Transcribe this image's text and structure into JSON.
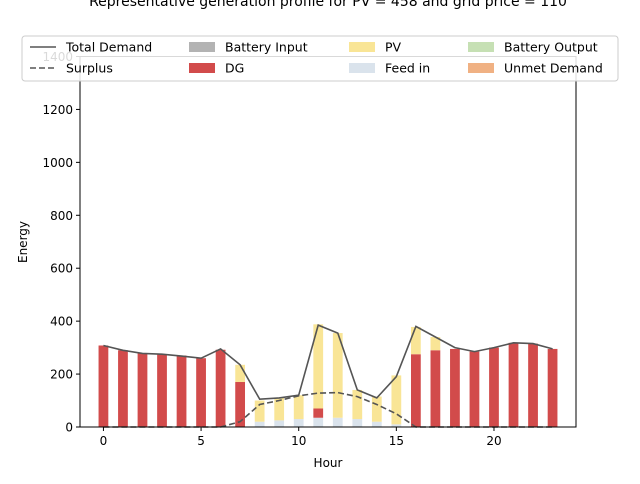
{
  "chart_data": {
    "type": "bar",
    "title": "Representative generation profile for PV = 458 and grid price = 110",
    "xlabel": "Hour",
    "ylabel": "Energy",
    "xlim": [
      -1.2,
      24.2
    ],
    "ylim": [
      0,
      1400
    ],
    "xticks": [
      0,
      5,
      10,
      15,
      20
    ],
    "yticks": [
      0,
      200,
      400,
      600,
      800,
      1000,
      1200,
      1400
    ],
    "grid": false,
    "legend_position": "top",
    "x": [
      0,
      1,
      2,
      3,
      4,
      5,
      6,
      7,
      8,
      9,
      10,
      11,
      12,
      13,
      14,
      15,
      16,
      17,
      18,
      19,
      20,
      21,
      22,
      23
    ],
    "stacked_bars": [
      {
        "name": "Battery Input",
        "color": "#b3b3b3",
        "values": [
          0,
          0,
          0,
          0,
          0,
          0,
          0,
          0,
          0,
          0,
          0,
          0,
          0,
          0,
          0,
          0,
          0,
          0,
          0,
          0,
          0,
          0,
          0,
          0
        ]
      },
      {
        "name": "Feed in",
        "color": "#dae3ec",
        "values": [
          0,
          0,
          0,
          0,
          0,
          0,
          0,
          0,
          20,
          25,
          30,
          35,
          35,
          30,
          20,
          10,
          0,
          0,
          0,
          0,
          0,
          0,
          0,
          0
        ]
      },
      {
        "name": "DG",
        "color": "#d24b4b",
        "values": [
          308,
          290,
          278,
          275,
          270,
          260,
          292,
          170,
          0,
          0,
          0,
          35,
          0,
          0,
          0,
          0,
          275,
          290,
          295,
          285,
          300,
          318,
          315,
          295
        ]
      },
      {
        "name": "PV",
        "color": "#f9e596",
        "values": [
          0,
          0,
          0,
          0,
          0,
          0,
          0,
          65,
          80,
          85,
          90,
          318,
          320,
          110,
          95,
          185,
          103,
          50,
          0,
          0,
          0,
          0,
          0,
          0
        ]
      },
      {
        "name": "Battery Output",
        "color": "#c6e0b4",
        "values": [
          0,
          0,
          0,
          0,
          0,
          0,
          0,
          0,
          0,
          0,
          0,
          0,
          0,
          0,
          0,
          0,
          0,
          0,
          0,
          0,
          0,
          0,
          0,
          0
        ]
      },
      {
        "name": "Unmet Demand",
        "color": "#f0b183",
        "values": [
          0,
          0,
          0,
          0,
          0,
          0,
          0,
          0,
          0,
          0,
          0,
          0,
          0,
          0,
          0,
          0,
          0,
          0,
          0,
          0,
          0,
          0,
          0,
          0
        ]
      }
    ],
    "lines": [
      {
        "name": "Total Demand",
        "style": "solid",
        "color": "#555555",
        "values": [
          308,
          290,
          278,
          275,
          268,
          260,
          295,
          235,
          105,
          110,
          120,
          385,
          355,
          140,
          110,
          190,
          380,
          340,
          300,
          285,
          300,
          318,
          315,
          295
        ]
      },
      {
        "name": "Surplus",
        "style": "dashed",
        "color": "#555555",
        "values": [
          0,
          0,
          0,
          0,
          0,
          0,
          0,
          20,
          85,
          100,
          118,
          128,
          130,
          115,
          85,
          50,
          0,
          0,
          0,
          0,
          0,
          0,
          0,
          0
        ]
      }
    ],
    "legend": [
      {
        "name": "Total Demand",
        "kind": "line",
        "style": "solid",
        "color": "#555555"
      },
      {
        "name": "Battery Input",
        "kind": "patch",
        "color": "#b3b3b3"
      },
      {
        "name": "PV",
        "kind": "patch",
        "color": "#f9e596"
      },
      {
        "name": "Battery Output",
        "kind": "patch",
        "color": "#c6e0b4"
      },
      {
        "name": "Surplus",
        "kind": "line",
        "style": "dashed",
        "color": "#555555"
      },
      {
        "name": "DG",
        "kind": "patch",
        "color": "#d24b4b"
      },
      {
        "name": "Feed in",
        "kind": "patch",
        "color": "#dae3ec"
      },
      {
        "name": "Unmet Demand",
        "kind": "patch",
        "color": "#f0b183"
      }
    ]
  }
}
